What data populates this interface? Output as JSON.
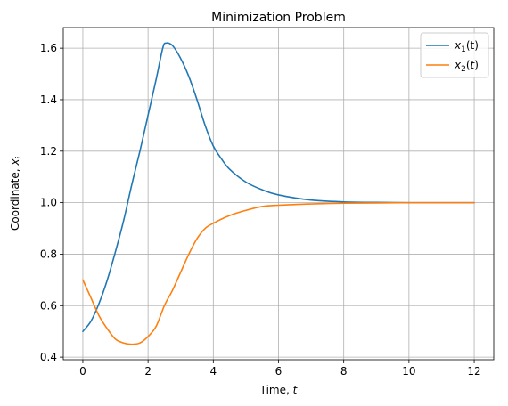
{
  "chart_data": {
    "type": "line",
    "title": "Minimization Problem",
    "xlabel": "Time, t",
    "ylabel": "Coordinate, xi",
    "xlim": [
      -0.6,
      12.6
    ],
    "ylim": [
      0.39,
      1.68
    ],
    "xticks": [
      0,
      2,
      4,
      6,
      8,
      10,
      12
    ],
    "yticks": [
      0.4,
      0.6,
      0.8,
      1.0,
      1.2,
      1.4,
      1.6
    ],
    "grid": true,
    "legend_position": "upper-right",
    "series": [
      {
        "name": "x1(t)",
        "color": "#1f77b4",
        "x": [
          0,
          0.25,
          0.5,
          0.75,
          1.0,
          1.25,
          1.5,
          1.75,
          2.0,
          2.25,
          2.45,
          2.55,
          2.75,
          3.0,
          3.25,
          3.5,
          3.75,
          4.0,
          4.25,
          4.5,
          5.0,
          5.5,
          6.0,
          7.0,
          8.0,
          9.0,
          10.0,
          11.0,
          12.0
        ],
        "y": [
          0.5,
          0.54,
          0.61,
          0.7,
          0.81,
          0.93,
          1.07,
          1.2,
          1.34,
          1.48,
          1.6,
          1.62,
          1.61,
          1.56,
          1.49,
          1.4,
          1.3,
          1.22,
          1.17,
          1.13,
          1.08,
          1.05,
          1.03,
          1.01,
          1.003,
          1.001,
          1.0,
          1.0,
          1.0
        ]
      },
      {
        "name": "x2(t)",
        "color": "#ff7f0e",
        "x": [
          0,
          0.25,
          0.5,
          0.75,
          1.0,
          1.25,
          1.5,
          1.75,
          2.0,
          2.25,
          2.5,
          2.75,
          3.0,
          3.25,
          3.5,
          3.75,
          4.0,
          4.5,
          5.0,
          5.5,
          6.0,
          7.0,
          8.0,
          9.0,
          10.0,
          11.0,
          12.0
        ],
        "y": [
          0.7,
          0.63,
          0.56,
          0.51,
          0.47,
          0.455,
          0.45,
          0.455,
          0.48,
          0.52,
          0.6,
          0.66,
          0.73,
          0.8,
          0.86,
          0.9,
          0.92,
          0.95,
          0.97,
          0.985,
          0.99,
          0.995,
          0.998,
          0.999,
          1.0,
          1.0,
          1.0
        ]
      }
    ]
  }
}
